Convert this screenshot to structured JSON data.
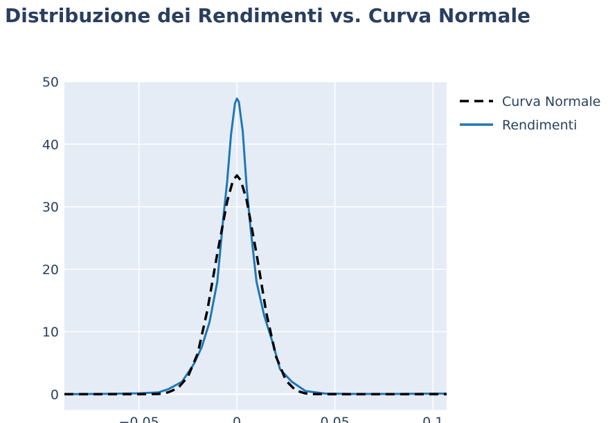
{
  "chart_data": {
    "type": "line",
    "title": "Distribuzione dei Rendimenti vs. Curva Normale",
    "xlabel": "",
    "ylabel": "",
    "xlim": [
      -0.088,
      0.107
    ],
    "ylim": [
      -2.5,
      50
    ],
    "x_ticks": [
      {
        "value": -0.05,
        "label": "−0.05"
      },
      {
        "value": 0,
        "label": "0"
      },
      {
        "value": 0.05,
        "label": "0.05"
      },
      {
        "value": 0.1,
        "label": "0.1"
      }
    ],
    "y_ticks": [
      {
        "value": 0,
        "label": "0"
      },
      {
        "value": 10,
        "label": "10"
      },
      {
        "value": 20,
        "label": "20"
      },
      {
        "value": 30,
        "label": "30"
      },
      {
        "value": 40,
        "label": "40"
      },
      {
        "value": 50,
        "label": "50"
      }
    ],
    "grid": true,
    "legend_position": "top-right",
    "colors": {
      "plot_background": "#e5ecf6",
      "grid": "#ffffff",
      "text": "#2a3f5f"
    },
    "series": [
      {
        "name": "Curva Normale",
        "color": "#000000",
        "dash": "dash",
        "x": [
          -0.088,
          -0.07,
          -0.05,
          -0.04,
          -0.035,
          -0.03,
          -0.025,
          -0.02,
          -0.015,
          -0.01,
          -0.005,
          -0.002,
          0,
          0.002,
          0.005,
          0.01,
          0.015,
          0.02,
          0.025,
          0.03,
          0.035,
          0.04,
          0.05,
          0.07,
          0.107
        ],
        "y": [
          0,
          0,
          0,
          0.05,
          0.3,
          1.0,
          2.8,
          6.5,
          13.5,
          22.5,
          30.8,
          34.2,
          35.0,
          34.2,
          31.0,
          22.5,
          13.0,
          6.0,
          2.2,
          0.6,
          0.12,
          0.02,
          0,
          0,
          0
        ]
      },
      {
        "name": "Rendimenti",
        "color": "#1f77b4",
        "dash": "solid",
        "x": [
          -0.088,
          -0.07,
          -0.05,
          -0.04,
          -0.035,
          -0.028,
          -0.022,
          -0.018,
          -0.014,
          -0.01,
          -0.007,
          -0.005,
          -0.003,
          -0.001,
          0,
          0.001,
          0.003,
          0.005,
          0.007,
          0.01,
          0.014,
          0.018,
          0.022,
          0.028,
          0.035,
          0.045,
          0.06,
          0.08,
          0.107
        ],
        "y": [
          0,
          0.05,
          0.15,
          0.3,
          0.8,
          2.0,
          4.8,
          7.5,
          11.5,
          18.0,
          28.0,
          34.0,
          41.5,
          46.5,
          47.3,
          46.8,
          42.0,
          33.0,
          26.5,
          18.0,
          12.5,
          8.5,
          4.0,
          2.0,
          0.5,
          0.1,
          0.05,
          0.05,
          0.1
        ]
      }
    ]
  }
}
